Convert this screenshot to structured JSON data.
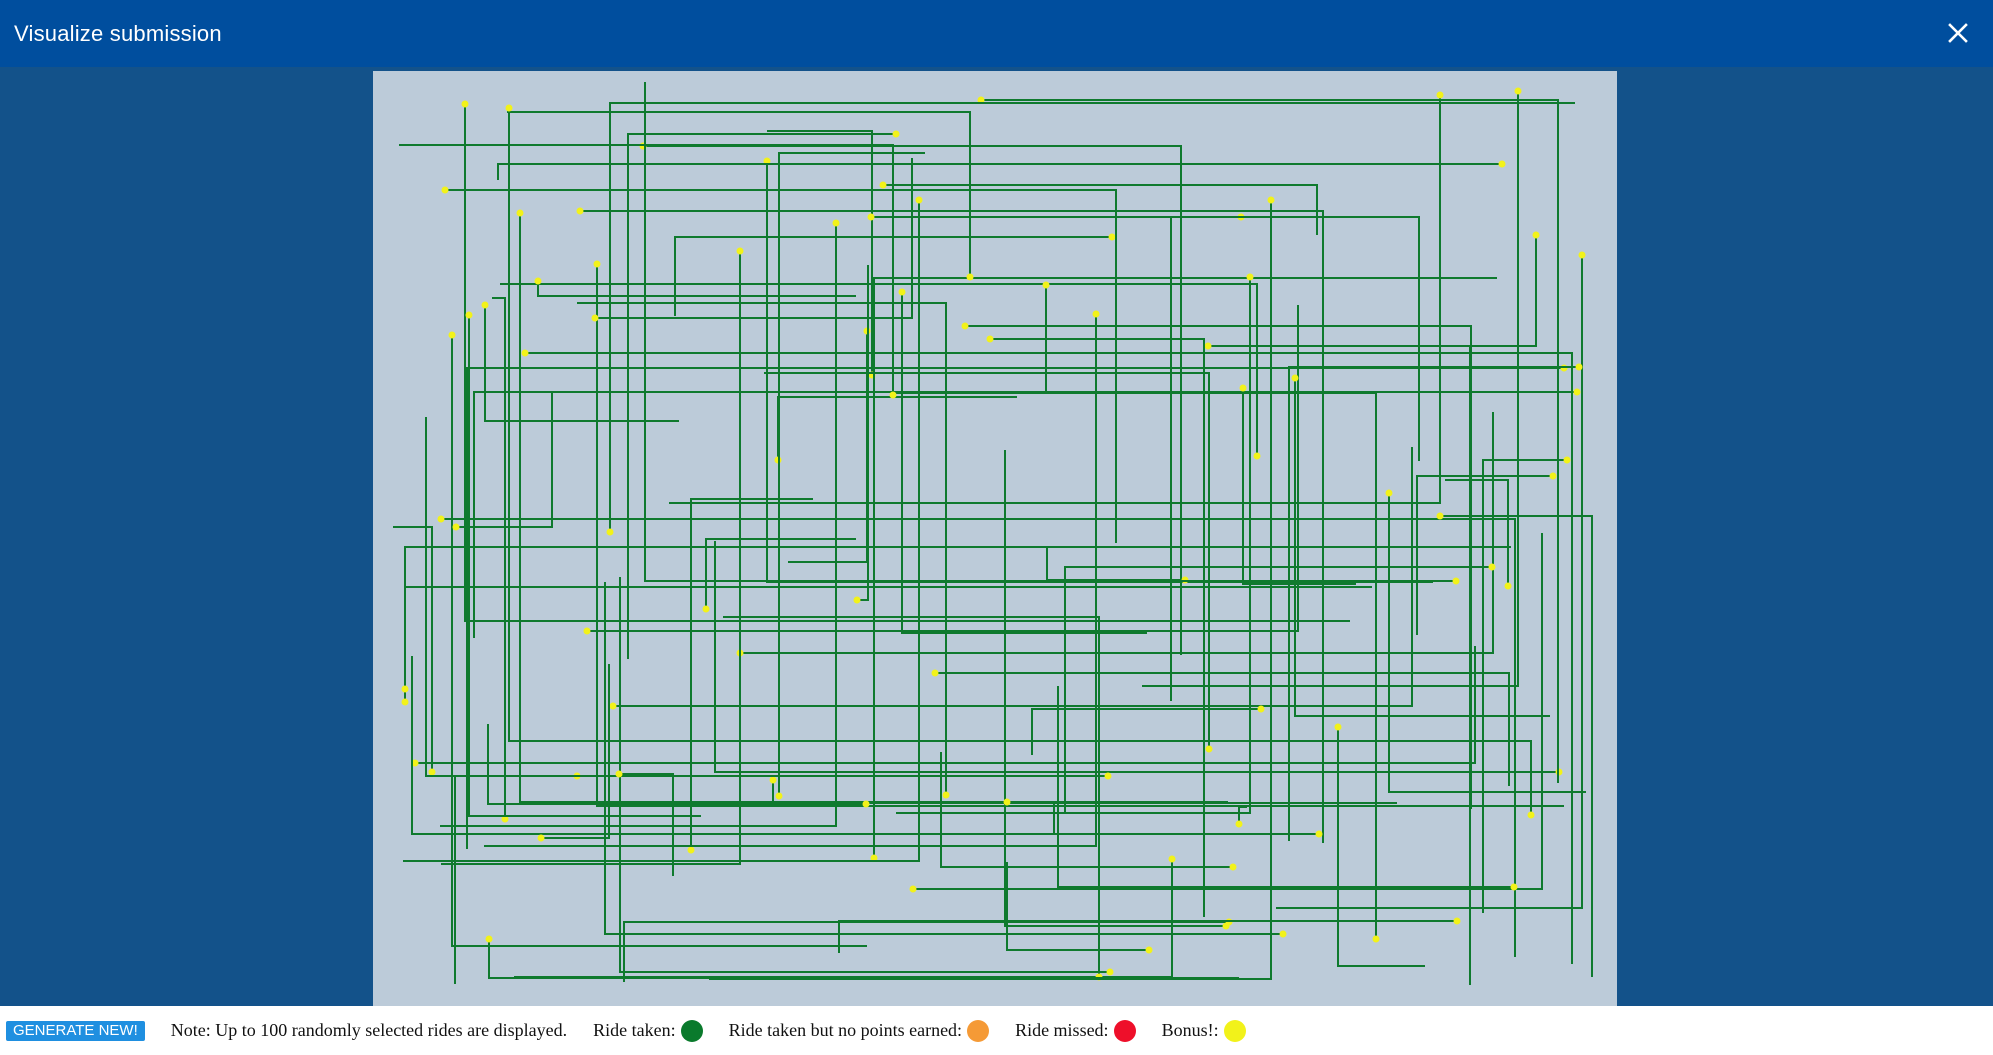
{
  "window": {
    "title": "Visualize submission",
    "close_icon": "close-icon"
  },
  "footer": {
    "generate_label": "GENERATE NEW!",
    "note": "Note: Up to 100 randomly selected rides are displayed.",
    "legend": [
      {
        "label": "Ride taken:",
        "color": "#0a7a2c"
      },
      {
        "label": "Ride taken but no points earned:",
        "color": "#f59a36"
      },
      {
        "label": "Ride missed:",
        "color": "#ee0f2a"
      },
      {
        "label": "Bonus!:",
        "color": "#f2f21a"
      }
    ]
  },
  "colors": {
    "ride_line": "#0f7a2e",
    "bonus_dot": "#f2f21a",
    "map_background": "#bccbd9"
  }
}
